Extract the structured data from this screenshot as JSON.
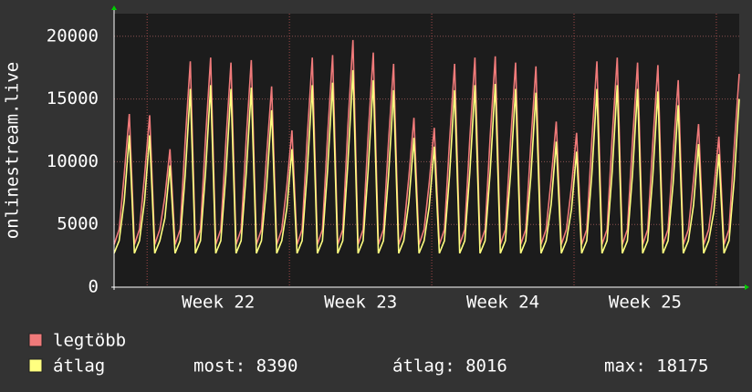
{
  "chart_data": {
    "type": "line",
    "y_label": "onlinestream.live",
    "xlim": [
      0,
      123
    ],
    "xticks": [
      {
        "value": 20.5,
        "label": "Week 22"
      },
      {
        "value": 48.5,
        "label": "Week 23"
      },
      {
        "value": 76.5,
        "label": "Week 24"
      },
      {
        "value": 104.5,
        "label": "Week 25"
      }
    ],
    "xgrid": [
      6.5,
      34.5,
      62.5,
      90.5,
      118.5
    ],
    "ylim": [
      0,
      21800
    ],
    "yticks": [
      0,
      5000,
      10000,
      15000,
      20000
    ],
    "grid": true,
    "series": [
      {
        "name": "legtöbb",
        "color": "#f07a7a",
        "values": [
          3400,
          4600,
          9000,
          13800,
          3400,
          4600,
          8900,
          13700,
          3400,
          4600,
          7200,
          11000,
          3400,
          4600,
          11700,
          18000,
          3400,
          4600,
          11900,
          18300,
          3400,
          4600,
          11600,
          17900,
          3400,
          4600,
          11800,
          18100,
          3400,
          4600,
          10400,
          16000,
          3400,
          4600,
          8100,
          12500,
          3400,
          4600,
          11900,
          18300,
          3400,
          4600,
          12000,
          18500,
          3400,
          4600,
          12800,
          19700,
          3400,
          4600,
          12200,
          18700,
          3400,
          4600,
          11600,
          17800,
          3400,
          4600,
          8800,
          13500,
          3400,
          4600,
          8300,
          12700,
          3400,
          4600,
          11600,
          17800,
          3400,
          4600,
          11900,
          18300,
          3400,
          4600,
          12000,
          18400,
          3400,
          4600,
          11600,
          17900,
          3400,
          4600,
          11400,
          17600,
          3400,
          4600,
          8600,
          13200,
          3400,
          4600,
          8000,
          12300,
          3400,
          4600,
          11700,
          18000,
          3400,
          4600,
          11900,
          18300,
          3400,
          4600,
          11600,
          17900,
          3400,
          4600,
          11500,
          17700,
          3400,
          4600,
          10700,
          16500,
          3400,
          4600,
          8500,
          13000,
          3400,
          4600,
          7800,
          12000,
          3400,
          4600,
          11100,
          17000
        ]
      },
      {
        "name": "átlag",
        "color": "#ffff80",
        "values": [
          2700,
          3700,
          6900,
          12100,
          2700,
          3700,
          6900,
          12100,
          2700,
          3700,
          5500,
          9700,
          2700,
          3700,
          9000,
          15800,
          2700,
          3700,
          9200,
          16100,
          2700,
          3700,
          9000,
          15800,
          2700,
          3700,
          9100,
          15900,
          2700,
          3700,
          8000,
          14100,
          2700,
          3700,
          6300,
          11000,
          2700,
          3700,
          9200,
          16100,
          2700,
          3700,
          9300,
          16300,
          2700,
          3700,
          9900,
          17300,
          2700,
          3700,
          9400,
          16500,
          2700,
          3700,
          8900,
          15700,
          2700,
          3700,
          6800,
          11900,
          2700,
          3700,
          6400,
          11200,
          2700,
          3700,
          8900,
          15700,
          2700,
          3700,
          9200,
          16100,
          2700,
          3700,
          9200,
          16200,
          2700,
          3700,
          9000,
          15800,
          2700,
          3700,
          8800,
          15500,
          2700,
          3700,
          6600,
          11600,
          2700,
          3700,
          6200,
          10800,
          2700,
          3700,
          9000,
          15800,
          2700,
          3700,
          9200,
          16100,
          2700,
          3700,
          9000,
          15800,
          2700,
          3700,
          8900,
          15600,
          2700,
          3700,
          8300,
          14500,
          2700,
          3700,
          6500,
          11400,
          2700,
          3700,
          6000,
          10600,
          2700,
          3700,
          8500,
          15000
        ]
      }
    ],
    "stats": [
      "most: 8390",
      "átlag: 8016",
      "max: 18175"
    ]
  }
}
